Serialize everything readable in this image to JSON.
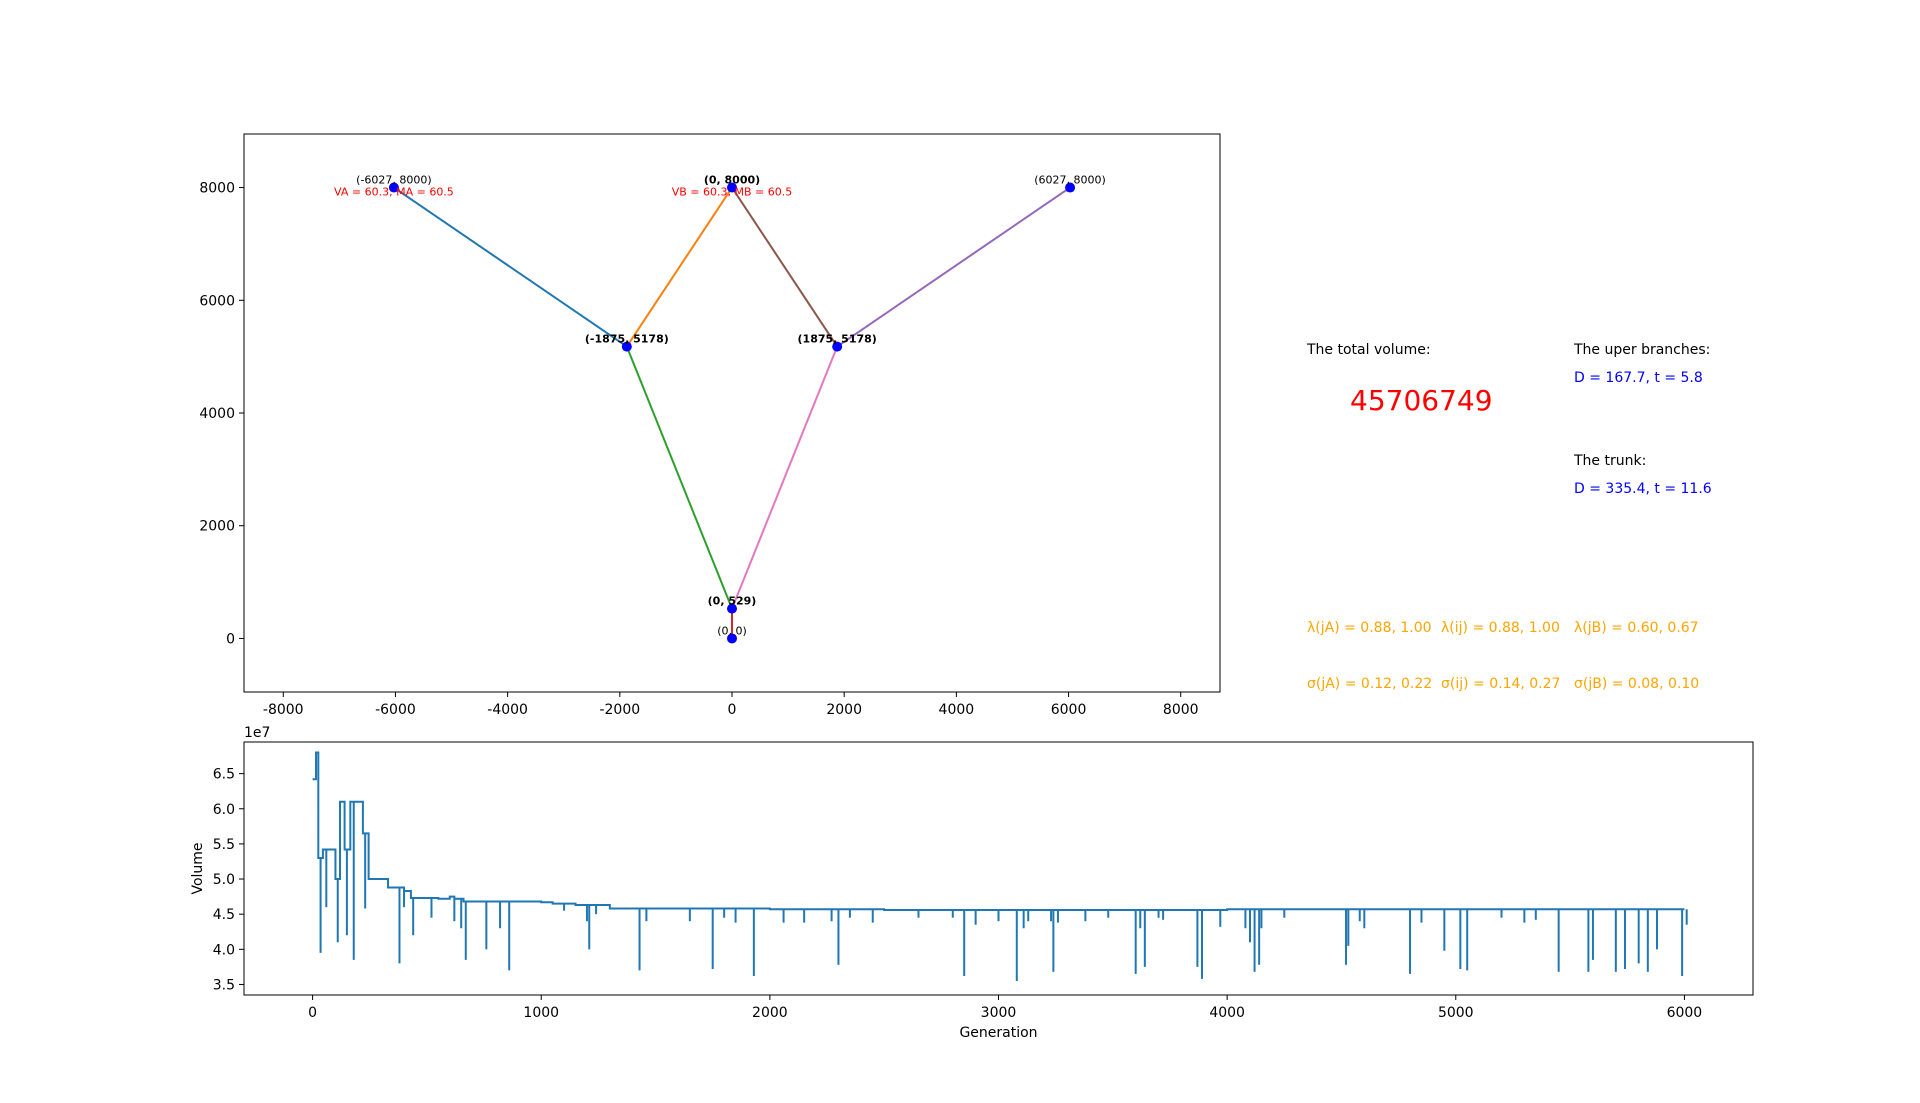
{
  "chart_data": [
    {
      "type": "line",
      "title": "",
      "xlabel": "",
      "ylabel": "",
      "xlim": [
        -8700,
        8700
      ],
      "ylim": [
        -950,
        8950
      ],
      "xticks": [
        -8000,
        -6000,
        -4000,
        -2000,
        0,
        2000,
        4000,
        6000,
        8000
      ],
      "yticks": [
        0,
        2000,
        4000,
        6000,
        8000
      ],
      "grid": false,
      "nodes": [
        {
          "x": -6027,
          "y": 8000,
          "label": "(-6027, 8000)",
          "bold": false
        },
        {
          "x": 0,
          "y": 8000,
          "label": "(0, 8000)",
          "bold": true
        },
        {
          "x": 6027,
          "y": 8000,
          "label": "(6027, 8000)",
          "bold": false
        },
        {
          "x": -1875,
          "y": 5178,
          "label": "(-1875, 5178)",
          "bold": true
        },
        {
          "x": 1875,
          "y": 5178,
          "label": "(1875, 5178)",
          "bold": true
        },
        {
          "x": 0,
          "y": 529,
          "label": "(0, 529)",
          "bold": true
        },
        {
          "x": 0,
          "y": 0,
          "label": "(0, 0)",
          "bold": false
        }
      ],
      "segments": [
        {
          "from": [
            -6027,
            8000
          ],
          "to": [
            -1875,
            5178
          ],
          "color": "#1f77b4"
        },
        {
          "from": [
            -1875,
            5178
          ],
          "to": [
            0,
            8000
          ],
          "color": "#ff7f0e"
        },
        {
          "from": [
            -1875,
            5178
          ],
          "to": [
            0,
            529
          ],
          "color": "#2ca02c"
        },
        {
          "from": [
            0,
            529
          ],
          "to": [
            0,
            0
          ],
          "color": "#d62728"
        },
        {
          "from": [
            1875,
            5178
          ],
          "to": [
            6027,
            8000
          ],
          "color": "#9467bd"
        },
        {
          "from": [
            0,
            8000
          ],
          "to": [
            1875,
            5178
          ],
          "color": "#8c564b"
        },
        {
          "from": [
            0,
            529
          ],
          "to": [
            1875,
            5178
          ],
          "color": "#e377c2"
        }
      ],
      "annotations": [
        {
          "x": -6027,
          "y": 8000,
          "text": "VA = 60.3, MA = 60.5",
          "color": "#ff0000"
        },
        {
          "x": 0,
          "y": 8000,
          "text": "VB = 60.3, MB = 60.5",
          "color": "#ff0000"
        }
      ]
    },
    {
      "type": "line",
      "title": "",
      "xlabel": "Generation",
      "ylabel": "Volume",
      "offset_text": "1e7",
      "xlim": [
        -300,
        6300
      ],
      "ylim": [
        3.35,
        6.95
      ],
      "xticks": [
        0,
        1000,
        2000,
        3000,
        4000,
        5000,
        6000
      ],
      "yticks": [
        3.5,
        4.0,
        4.5,
        5.0,
        5.5,
        6.0,
        6.5
      ],
      "ytick_labels": [
        "3.5",
        "4.0",
        "4.5",
        "5.0",
        "5.5",
        "6.0",
        "6.5"
      ],
      "grid": false,
      "series": [
        {
          "color": "#1f77b4",
          "plateaus": [
            [
              0,
              6.42
            ],
            [
              10,
              6.42
            ],
            [
              15,
              6.8
            ],
            [
              25,
              5.3
            ],
            [
              45,
              5.42
            ],
            [
              100,
              5.0
            ],
            [
              120,
              6.1
            ],
            [
              140,
              5.42
            ],
            [
              165,
              6.1
            ],
            [
              200,
              6.1
            ],
            [
              220,
              5.65
            ],
            [
              245,
              5.0
            ],
            [
              330,
              4.88
            ],
            [
              400,
              4.83
            ],
            [
              430,
              4.73
            ],
            [
              550,
              4.72
            ],
            [
              600,
              4.75
            ],
            [
              620,
              4.72
            ],
            [
              660,
              4.68
            ],
            [
              800,
              4.68
            ],
            [
              1000,
              4.67
            ],
            [
              1050,
              4.65
            ],
            [
              1150,
              4.63
            ],
            [
              1300,
              4.58
            ],
            [
              2000,
              4.57
            ],
            [
              2500,
              4.56
            ],
            [
              4000,
              4.57
            ],
            [
              6000,
              4.57
            ]
          ],
          "dips": [
            [
              15,
              6.8
            ],
            [
              25,
              5.3
            ],
            [
              35,
              3.95
            ],
            [
              60,
              4.6
            ],
            [
              80,
              5.42
            ],
            [
              110,
              4.1
            ],
            [
              150,
              4.2
            ],
            [
              180,
              3.85
            ],
            [
              230,
              4.58
            ],
            [
              380,
              3.8
            ],
            [
              400,
              4.6
            ],
            [
              440,
              4.2
            ],
            [
              520,
              4.45
            ],
            [
              620,
              4.4
            ],
            [
              650,
              4.3
            ],
            [
              670,
              3.85
            ],
            [
              760,
              4.0
            ],
            [
              820,
              4.3
            ],
            [
              860,
              3.7
            ],
            [
              1100,
              4.55
            ],
            [
              1200,
              4.4
            ],
            [
              1210,
              4.0
            ],
            [
              1240,
              4.5
            ],
            [
              1430,
              3.7
            ],
            [
              1460,
              4.4
            ],
            [
              1650,
              4.4
            ],
            [
              1750,
              3.72
            ],
            [
              1800,
              4.45
            ],
            [
              1850,
              4.38
            ],
            [
              1930,
              3.62
            ],
            [
              2060,
              4.38
            ],
            [
              2150,
              4.38
            ],
            [
              2270,
              4.4
            ],
            [
              2300,
              3.78
            ],
            [
              2350,
              4.45
            ],
            [
              2450,
              4.38
            ],
            [
              2650,
              4.45
            ],
            [
              2800,
              4.45
            ],
            [
              2850,
              3.62
            ],
            [
              2900,
              4.35
            ],
            [
              3000,
              4.4
            ],
            [
              3080,
              3.55
            ],
            [
              3110,
              4.3
            ],
            [
              3130,
              4.4
            ],
            [
              3230,
              4.4
            ],
            [
              3240,
              3.68
            ],
            [
              3260,
              4.38
            ],
            [
              3380,
              4.4
            ],
            [
              3480,
              4.45
            ],
            [
              3600,
              3.65
            ],
            [
              3620,
              4.3
            ],
            [
              3640,
              3.75
            ],
            [
              3700,
              4.45
            ],
            [
              3720,
              4.42
            ],
            [
              3870,
              3.75
            ],
            [
              3890,
              3.58
            ],
            [
              3970,
              4.32
            ],
            [
              4080,
              4.3
            ],
            [
              4100,
              4.1
            ],
            [
              4120,
              3.68
            ],
            [
              4140,
              3.78
            ],
            [
              4150,
              4.3
            ],
            [
              4250,
              4.45
            ],
            [
              4520,
              3.78
            ],
            [
              4530,
              4.05
            ],
            [
              4580,
              4.4
            ],
            [
              4600,
              4.3
            ],
            [
              4800,
              3.65
            ],
            [
              4850,
              4.38
            ],
            [
              4950,
              3.98
            ],
            [
              5020,
              3.72
            ],
            [
              5050,
              3.7
            ],
            [
              5200,
              4.45
            ],
            [
              5300,
              4.38
            ],
            [
              5350,
              4.42
            ],
            [
              5450,
              3.68
            ],
            [
              5580,
              3.68
            ],
            [
              5600,
              3.85
            ],
            [
              5700,
              3.68
            ],
            [
              5740,
              3.72
            ],
            [
              5800,
              3.8
            ],
            [
              5840,
              3.68
            ],
            [
              5880,
              4.0
            ],
            [
              5990,
              3.62
            ],
            [
              6010,
              4.35
            ]
          ]
        }
      ]
    }
  ],
  "info_panel": {
    "total_volume_label": "The total volume:",
    "total_volume_value": "45706749",
    "upper_branches_label": "The uper branches:",
    "upper_branches_value": "D = 167.7, t = 5.8",
    "trunk_label": "The trunk:",
    "trunk_value": "D = 335.4, t = 11.6",
    "lambda_ja": "λ(jA) = 0.88, 1.00",
    "lambda_ij": "λ(ij) = 0.88, 1.00",
    "lambda_jb": "λ(jB) = 0.60, 0.67",
    "sigma_ja": "σ(jA) = 0.12, 0.22",
    "sigma_ij": "σ(ij) = 0.14, 0.27",
    "sigma_jb": "σ(jB) = 0.08, 0.10"
  }
}
